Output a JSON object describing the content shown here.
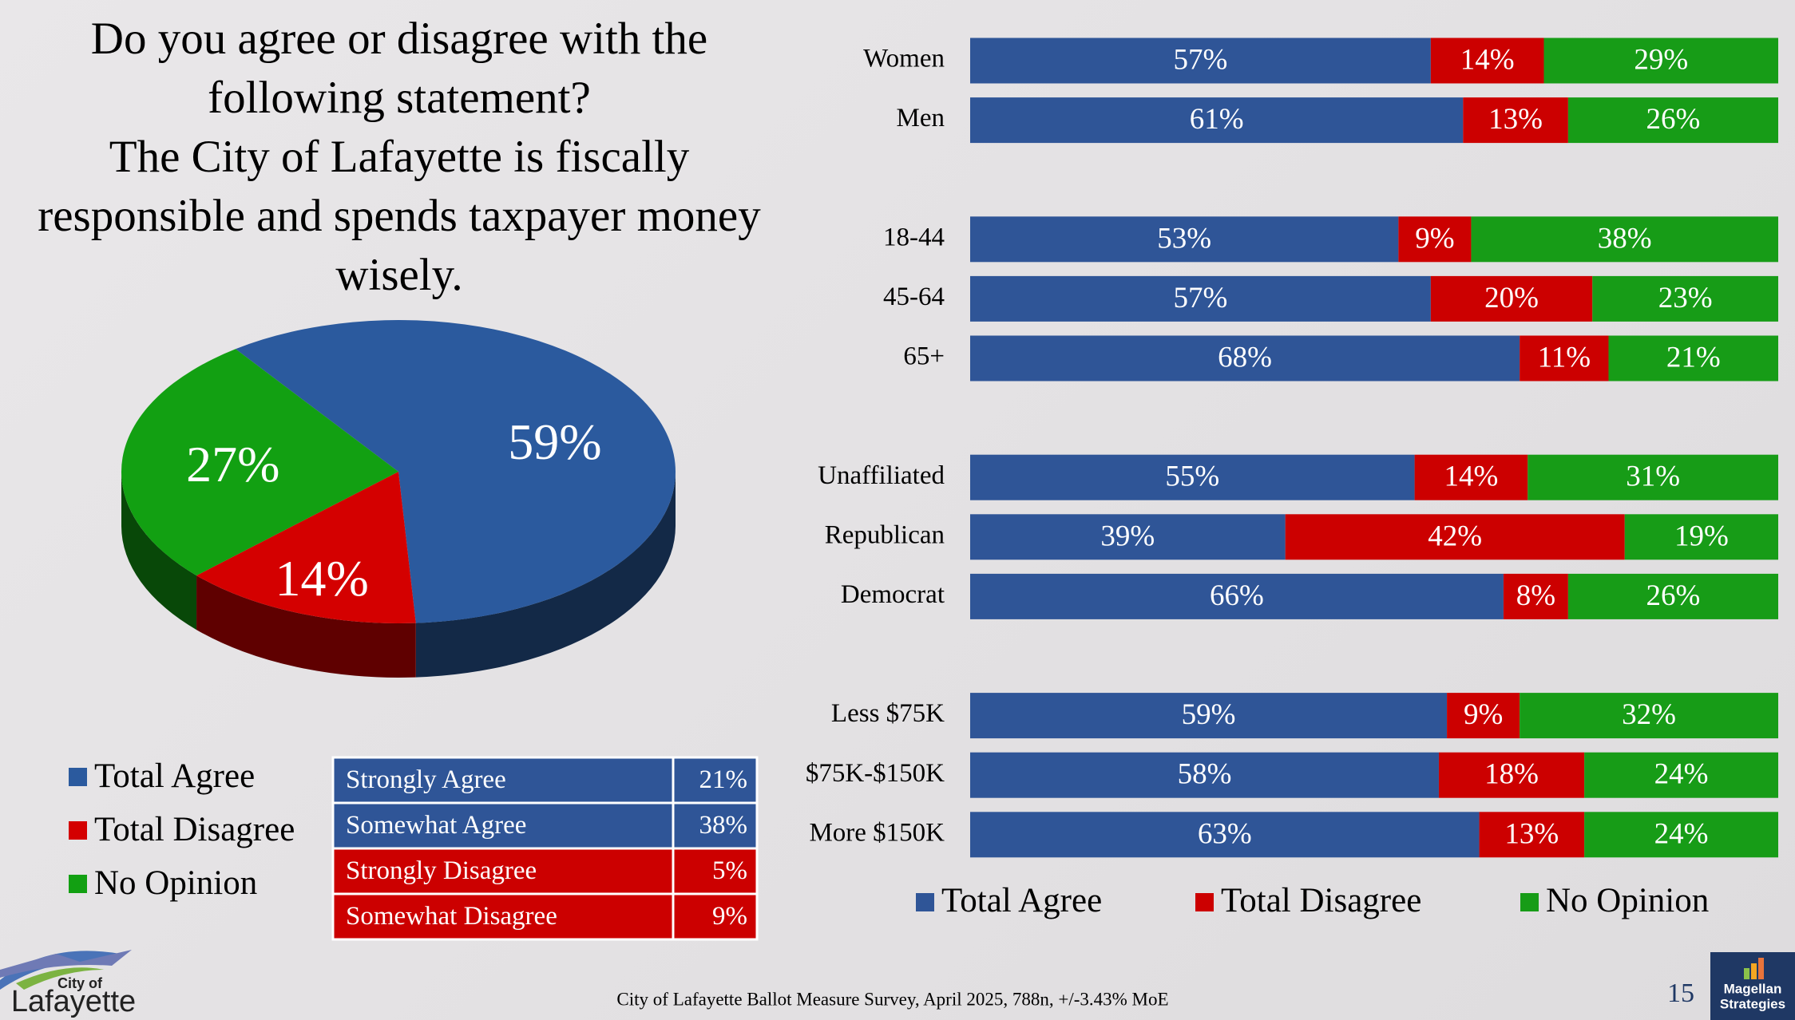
{
  "title": {
    "question": "Do you agree or disagree with the following statement?",
    "statement": "The City of Lafayette is fiscally responsible and spends taxpayer money wisely."
  },
  "chart_data": [
    {
      "type": "pie",
      "categories": [
        "Total Agree",
        "Total Disagree",
        "No Opinion"
      ],
      "values": [
        59,
        14,
        27
      ],
      "value_labels": [
        "59%",
        "14%",
        "27%"
      ],
      "colors": [
        "#2B5A9E",
        "#D40000",
        "#12A012"
      ]
    },
    {
      "type": "bar",
      "orientation": "horizontal",
      "stacked": true,
      "categories": [
        "Women",
        "Men",
        "18-44",
        "45-64",
        "65+",
        "Unaffiliated",
        "Republican",
        "Democrat",
        "Less $75K",
        "$75K-$150K",
        "More $150K"
      ],
      "xlim": [
        0,
        100
      ],
      "legend": "bottom",
      "series": [
        {
          "name": "Total Agree",
          "color": "#2F5597",
          "values": [
            57,
            61,
            53,
            57,
            68,
            55,
            39,
            66,
            59,
            58,
            63
          ],
          "value_labels": [
            "57%",
            "61%",
            "53%",
            "57%",
            "68%",
            "55%",
            "39%",
            "66%",
            "59%",
            "58%",
            "63%"
          ]
        },
        {
          "name": "Total Disagree",
          "color": "#CC0000",
          "values": [
            14,
            13,
            9,
            20,
            11,
            14,
            42,
            8,
            9,
            18,
            13
          ],
          "value_labels": [
            "14%",
            "13%",
            "9%",
            "20%",
            "11%",
            "14%",
            "42%",
            "8%",
            "9%",
            "18%",
            "13%"
          ]
        },
        {
          "name": "No Opinion",
          "color": "#179C17",
          "values": [
            29,
            26,
            38,
            23,
            21,
            31,
            19,
            26,
            32,
            24,
            24
          ],
          "value_labels": [
            "29%",
            "26%",
            "38%",
            "23%",
            "21%",
            "31%",
            "19%",
            "26%",
            "32%",
            "24%",
            "24%"
          ]
        }
      ]
    }
  ],
  "table": {
    "rows": [
      [
        "Strongly Agree",
        "21%"
      ],
      [
        "Somewhat Agree",
        "38%"
      ],
      [
        "Strongly Disagree",
        "5%"
      ],
      [
        "Somewhat Disagree",
        "9%"
      ]
    ],
    "row_colors": [
      "#2F5597",
      "#2F5597",
      "#CC0000",
      "#CC0000"
    ]
  },
  "footer": "City of Lafayette Ballot Measure Survey, April 2025, 788n, +/-3.43% MoE",
  "page_number": "15",
  "logo": {
    "city_of": "City of",
    "name": "Lafayette"
  },
  "brand": {
    "line1": "Magellan",
    "line2": "Strategies"
  }
}
